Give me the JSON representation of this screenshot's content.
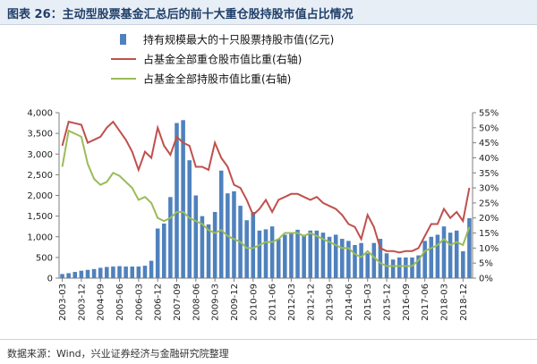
{
  "header": {
    "title": "图表 26：主动型股票基金汇总后的前十大重仓股持股市值占比情况"
  },
  "footer": {
    "source": "数据来源：Wind，兴业证券经济与金融研究院整理"
  },
  "colors": {
    "bar": "#4f81bd",
    "top10_line": "#c0504d",
    "all_line": "#9bbb59",
    "axis": "#7f7f7f"
  },
  "chart_data": {
    "type": "bar",
    "left_axis": {
      "ylim": [
        0,
        4000
      ],
      "ticks": [
        "0",
        "500",
        "1,000",
        "1,500",
        "2,000",
        "2,500",
        "3,000",
        "3,500",
        "4,000"
      ]
    },
    "right_axis": {
      "ylim": [
        0,
        55
      ],
      "ticks": [
        "0%",
        "5%",
        "10%",
        "15%",
        "20%",
        "25%",
        "30%",
        "35%",
        "40%",
        "45%",
        "50%",
        "55%"
      ]
    },
    "x_tick_labels": [
      "2003-03",
      "2003-12",
      "2004-09",
      "2005-06",
      "2006-03",
      "2006-12",
      "2007-09",
      "2008-06",
      "2009-03",
      "2009-12",
      "2010-09",
      "2011-06",
      "2012-03",
      "2012-12",
      "2013-09",
      "2014-06",
      "2015-03",
      "2015-12",
      "2016-09",
      "2017-06",
      "2018-03",
      "2018-12"
    ],
    "x": [
      "2003-03",
      "2003-06",
      "2003-09",
      "2003-12",
      "2004-03",
      "2004-06",
      "2004-09",
      "2004-12",
      "2005-03",
      "2005-06",
      "2005-09",
      "2005-12",
      "2006-03",
      "2006-06",
      "2006-09",
      "2006-12",
      "2007-03",
      "2007-06",
      "2007-09",
      "2007-12",
      "2008-03",
      "2008-06",
      "2008-09",
      "2008-12",
      "2009-03",
      "2009-06",
      "2009-09",
      "2009-12",
      "2010-03",
      "2010-06",
      "2010-09",
      "2010-12",
      "2011-03",
      "2011-06",
      "2011-09",
      "2011-12",
      "2012-03",
      "2012-06",
      "2012-09",
      "2012-12",
      "2013-03",
      "2013-06",
      "2013-09",
      "2013-12",
      "2014-03",
      "2014-06",
      "2014-09",
      "2014-12",
      "2015-03",
      "2015-06",
      "2015-09",
      "2015-12",
      "2016-03",
      "2016-06",
      "2016-09",
      "2016-12",
      "2017-03",
      "2017-06",
      "2017-09",
      "2017-12",
      "2018-03",
      "2018-06",
      "2018-09",
      "2018-12",
      "2019-03"
    ],
    "series": [
      {
        "name": "持有规模最大的十只股票持股市值(亿元)",
        "axis": "left",
        "type": "bar",
        "values": [
          100,
          120,
          150,
          180,
          200,
          220,
          250,
          270,
          280,
          290,
          280,
          280,
          280,
          300,
          420,
          1200,
          1320,
          1960,
          3750,
          3820,
          2850,
          2000,
          1500,
          1300,
          1600,
          2600,
          2050,
          2100,
          1750,
          1400,
          1600,
          1150,
          1180,
          1250,
          950,
          1050,
          1100,
          1170,
          1050,
          1150,
          1150,
          1100,
          1000,
          1050,
          950,
          900,
          800,
          850,
          600,
          850,
          950,
          600,
          450,
          500,
          500,
          500,
          550,
          900,
          1000,
          1050,
          1250,
          1100,
          1150,
          650,
          1450
        ]
      },
      {
        "name": "占基金全部重仓股市值比重(右轴)",
        "axis": "right",
        "type": "line",
        "values": [
          44,
          52,
          51.5,
          51,
          45,
          46,
          47,
          50,
          52,
          49,
          46,
          42,
          36,
          42,
          40,
          50,
          44,
          41,
          47,
          45,
          44,
          37,
          37,
          36,
          45,
          40,
          37,
          31,
          30,
          26,
          21,
          23,
          26,
          22,
          26,
          27,
          28,
          28,
          27,
          26,
          27,
          25,
          24,
          23,
          21,
          18,
          17,
          13,
          21,
          17,
          10,
          9,
          9,
          8.5,
          9,
          9,
          10,
          14,
          18,
          18,
          23,
          20,
          22,
          19,
          30
        ]
      },
      {
        "name": "占基金全部持股市值比重(右轴)",
        "axis": "right",
        "type": "line",
        "values": [
          37,
          49,
          48,
          47,
          38,
          33,
          31,
          32,
          35,
          34,
          32,
          30,
          26,
          27,
          25,
          20,
          19,
          20,
          22,
          22,
          20,
          19,
          18,
          16,
          15,
          16,
          14,
          13,
          12,
          10,
          10,
          11,
          12,
          12,
          13,
          15,
          15,
          15,
          14,
          15,
          14,
          13,
          12,
          11,
          10,
          10,
          8,
          7,
          9,
          7,
          5,
          4,
          4,
          4,
          4,
          4,
          6,
          9,
          10,
          11,
          13,
          11,
          12,
          11,
          17
        ]
      }
    ]
  }
}
